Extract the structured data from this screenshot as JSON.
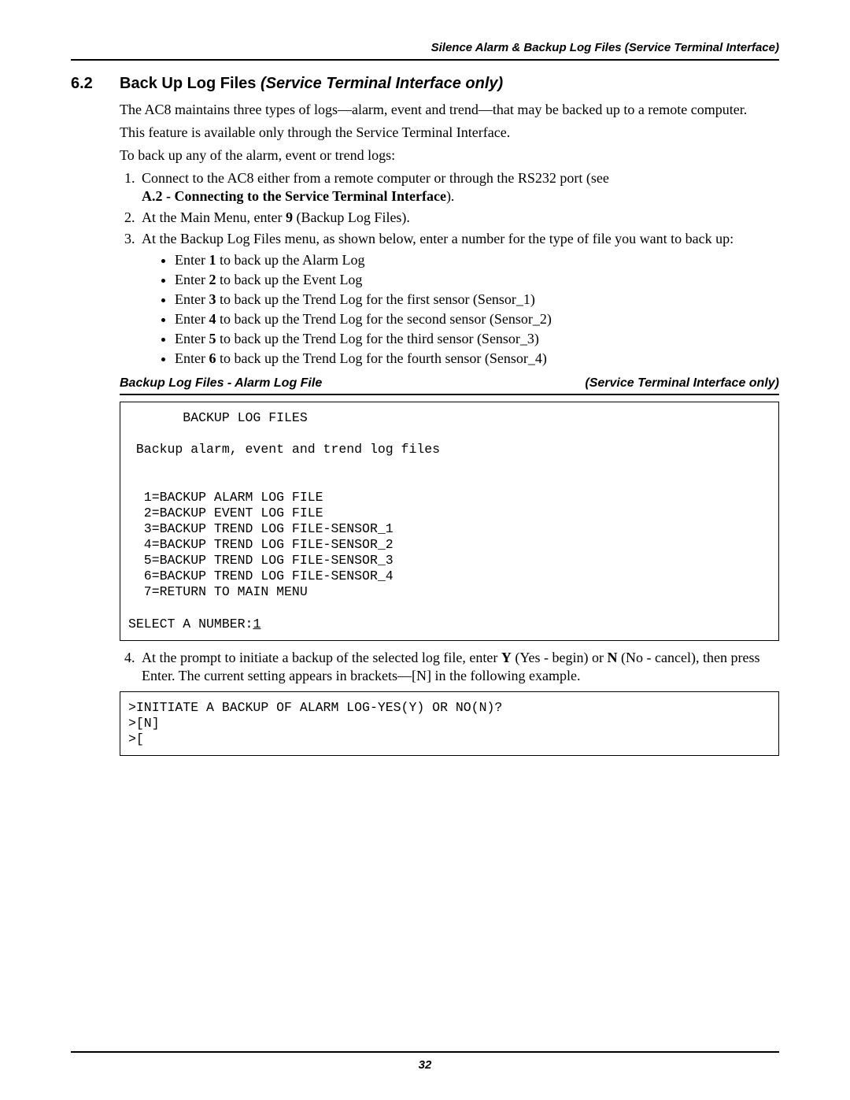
{
  "running_header": "Silence Alarm & Backup Log Files (Service Terminal Interface)",
  "section": {
    "number": "6.2",
    "title_plain": "Back Up Log Files ",
    "title_italic": "(Service Terminal Interface only)"
  },
  "para1": "The AC8 maintains three types of logs—alarm, event and trend—that may be backed up to a remote computer.",
  "para2": "This feature is available only through the Service Terminal Interface.",
  "para3": "To back up any of the alarm, event or trend logs:",
  "step1_a": "Connect to the AC8 either from a remote computer or through the RS232 port (see ",
  "step1_bold": "A.2 - Connecting to the Service Terminal Interface",
  "step1_c": ").",
  "step2_a": "At the Main Menu, enter ",
  "step2_bold": "9",
  "step2_b": " (Backup Log Files).",
  "step3": "At the Backup Log Files menu, as shown below, enter a number for the type of file you want to back up:",
  "bullet1_a": "Enter ",
  "bullet1_bold": "1",
  "bullet1_b": " to back up the Alarm Log",
  "bullet2_a": "Enter ",
  "bullet2_bold": "2",
  "bullet2_b": " to back up the Event Log",
  "bullet3_a": "Enter ",
  "bullet3_bold": "3",
  "bullet3_b": " to back up the Trend Log for the first sensor (Sensor_1)",
  "bullet4_a": "Enter ",
  "bullet4_bold": "4",
  "bullet4_b": " to back up the Trend Log for the second sensor (Sensor_2)",
  "bullet5_a": "Enter ",
  "bullet5_bold": "5",
  "bullet5_b": " to back up the Trend Log for the third sensor (Sensor_3)",
  "bullet6_a": "Enter ",
  "bullet6_bold": "6",
  "bullet6_b": " to back up the Trend Log for the fourth sensor (Sensor_4)",
  "figcap_left": "Backup Log Files - Alarm Log File",
  "figcap_right": "(Service Terminal Interface only)",
  "codebox1_l1": "       BACKUP LOG FILES",
  "codebox1_l2": "",
  "codebox1_l3": " Backup alarm, event and trend log files",
  "codebox1_l4": "",
  "codebox1_l5": "",
  "codebox1_l6": "  1=BACKUP ALARM LOG FILE",
  "codebox1_l7": "  2=BACKUP EVENT LOG FILE",
  "codebox1_l8": "  3=BACKUP TREND LOG FILE-SENSOR_1",
  "codebox1_l9": "  4=BACKUP TREND LOG FILE-SENSOR_2",
  "codebox1_l10": "  5=BACKUP TREND LOG FILE-SENSOR_3",
  "codebox1_l11": "  6=BACKUP TREND LOG FILE-SENSOR_4",
  "codebox1_l12": "  7=RETURN TO MAIN MENU",
  "codebox1_l13": "",
  "codebox1_l14a": "SELECT A NUMBER:",
  "codebox1_l14u": "1",
  "step4_a": "At the prompt to initiate a backup of the selected log file, enter ",
  "step4_Y": "Y",
  "step4_b": " (Yes - begin) or ",
  "step4_N": "N",
  "step4_c": " (No - cancel), then press Enter. The current setting appears in brackets—[N] in the following example.",
  "codebox2_l1": ">INITIATE A BACKUP OF ALARM LOG-YES(Y) OR NO(N)?",
  "codebox2_l2": ">[N]",
  "codebox2_l3": ">[",
  "page_number": "32"
}
